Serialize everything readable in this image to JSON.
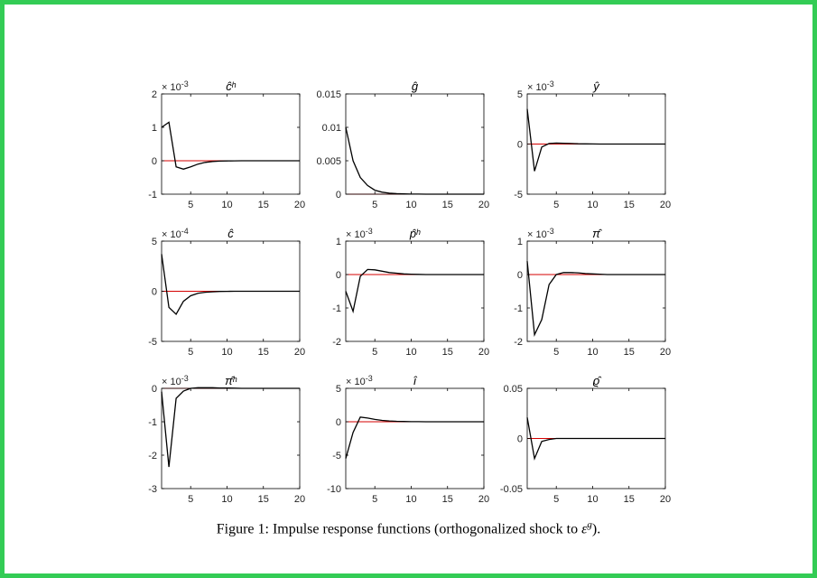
{
  "caption": {
    "label": "Figure 1:",
    "text": "Impulse response functions (orthogonalized shock to",
    "symbol": "ε",
    "superscript": "g",
    "end": ")."
  },
  "colors": {
    "frame": "#33cc55",
    "response": "#000000",
    "zero_line": "#d40000"
  },
  "chart_data": [
    {
      "type": "line",
      "title": "ĉʰ",
      "multiplier": "× 10-3",
      "xlim": [
        1,
        20
      ],
      "xticks": [
        5,
        10,
        15,
        20
      ],
      "ylim": [
        -1,
        2
      ],
      "yticks": [
        -1,
        0,
        1,
        2
      ],
      "ytick_labels": [
        "-1",
        "0",
        "1",
        "2"
      ],
      "x": [
        1,
        2,
        3,
        4,
        5,
        6,
        7,
        8,
        9,
        10,
        11,
        12,
        13,
        14,
        15,
        16,
        17,
        18,
        19,
        20
      ],
      "values": [
        1.0,
        1.15,
        -0.18,
        -0.25,
        -0.18,
        -0.1,
        -0.05,
        -0.025,
        -0.012,
        -0.006,
        -0.003,
        0,
        0,
        0,
        0,
        0,
        0,
        0,
        0,
        0
      ]
    },
    {
      "type": "line",
      "title": "ĝ",
      "multiplier": "",
      "xlim": [
        1,
        20
      ],
      "xticks": [
        5,
        10,
        15,
        20
      ],
      "ylim": [
        0,
        0.015
      ],
      "yticks": [
        0,
        0.005,
        0.01,
        0.015
      ],
      "ytick_labels": [
        "0",
        "0.005",
        "0.01",
        "0.015"
      ],
      "x": [
        1,
        2,
        3,
        4,
        5,
        6,
        7,
        8,
        9,
        10,
        11,
        12,
        13,
        14,
        15,
        16,
        17,
        18,
        19,
        20
      ],
      "values": [
        0.01,
        0.005,
        0.0025,
        0.0013,
        0.0006,
        0.0003,
        0.00015,
        8e-05,
        4e-05,
        2e-05,
        1e-05,
        0,
        0,
        0,
        0,
        0,
        0,
        0,
        0,
        0
      ]
    },
    {
      "type": "line",
      "title": "ŷ",
      "multiplier": "× 10-3",
      "xlim": [
        1,
        20
      ],
      "xticks": [
        5,
        10,
        15,
        20
      ],
      "ylim": [
        -5,
        5
      ],
      "yticks": [
        -5,
        0,
        5
      ],
      "ytick_labels": [
        "-5",
        "0",
        "5"
      ],
      "x": [
        1,
        2,
        3,
        4,
        5,
        6,
        7,
        8,
        9,
        10,
        11,
        12,
        13,
        14,
        15,
        16,
        17,
        18,
        19,
        20
      ],
      "values": [
        3.5,
        -2.7,
        -0.3,
        0.05,
        0.1,
        0.08,
        0.05,
        0.03,
        0.02,
        0.01,
        0,
        0,
        0,
        0,
        0,
        0,
        0,
        0,
        0,
        0
      ]
    },
    {
      "type": "line",
      "title": "ĉ",
      "multiplier": "× 10-4",
      "xlim": [
        1,
        20
      ],
      "xticks": [
        5,
        10,
        15,
        20
      ],
      "ylim": [
        -5,
        5
      ],
      "yticks": [
        -5,
        0,
        5
      ],
      "ytick_labels": [
        "-5",
        "0",
        "5"
      ],
      "x": [
        1,
        2,
        3,
        4,
        5,
        6,
        7,
        8,
        9,
        10,
        11,
        12,
        13,
        14,
        15,
        16,
        17,
        18,
        19,
        20
      ],
      "values": [
        3.7,
        -1.6,
        -2.3,
        -1.0,
        -0.45,
        -0.2,
        -0.1,
        -0.05,
        -0.02,
        -0.01,
        0,
        0,
        0,
        0,
        0,
        0,
        0,
        0,
        0,
        0
      ]
    },
    {
      "type": "line",
      "title": "p̂ʰ",
      "multiplier": "× 10-3",
      "xlim": [
        1,
        20
      ],
      "xticks": [
        5,
        10,
        15,
        20
      ],
      "ylim": [
        -2,
        1
      ],
      "yticks": [
        -2,
        -1,
        0,
        1
      ],
      "ytick_labels": [
        "-2",
        "-1",
        "0",
        "1"
      ],
      "x": [
        1,
        2,
        3,
        4,
        5,
        6,
        7,
        8,
        9,
        10,
        11,
        12,
        13,
        14,
        15,
        16,
        17,
        18,
        19,
        20
      ],
      "values": [
        -0.5,
        -1.1,
        -0.05,
        0.15,
        0.14,
        0.1,
        0.06,
        0.04,
        0.02,
        0.01,
        0.005,
        0,
        0,
        0,
        0,
        0,
        0,
        0,
        0,
        0
      ]
    },
    {
      "type": "line",
      "title": "π̂",
      "multiplier": "× 10-3",
      "xlim": [
        1,
        20
      ],
      "xticks": [
        5,
        10,
        15,
        20
      ],
      "ylim": [
        -2,
        1
      ],
      "yticks": [
        -2,
        -1,
        0,
        1
      ],
      "ytick_labels": [
        "-2",
        "-1",
        "0",
        "1"
      ],
      "x": [
        1,
        2,
        3,
        4,
        5,
        6,
        7,
        8,
        9,
        10,
        11,
        12,
        13,
        14,
        15,
        16,
        17,
        18,
        19,
        20
      ],
      "values": [
        0.4,
        -1.8,
        -1.35,
        -0.3,
        0.0,
        0.06,
        0.06,
        0.05,
        0.03,
        0.02,
        0.01,
        0,
        0,
        0,
        0,
        0,
        0,
        0,
        0,
        0
      ]
    },
    {
      "type": "line",
      "title": "π̂ʰ",
      "multiplier": "× 10-3",
      "xlim": [
        1,
        20
      ],
      "xticks": [
        5,
        10,
        15,
        20
      ],
      "ylim": [
        -3,
        0
      ],
      "yticks": [
        -3,
        -2,
        -1,
        0
      ],
      "ytick_labels": [
        "-3",
        "-2",
        "-1",
        "0"
      ],
      "x": [
        1,
        2,
        3,
        4,
        5,
        6,
        7,
        8,
        9,
        10,
        11,
        12,
        13,
        14,
        15,
        16,
        17,
        18,
        19,
        20
      ],
      "values": [
        -0.1,
        -2.35,
        -0.3,
        -0.08,
        0.0,
        0.02,
        0.02,
        0.02,
        0.01,
        0.01,
        0.005,
        0,
        0,
        0,
        0,
        0,
        0,
        0,
        0,
        0
      ]
    },
    {
      "type": "line",
      "title": "î",
      "multiplier": "× 10-3",
      "xlim": [
        1,
        20
      ],
      "xticks": [
        5,
        10,
        15,
        20
      ],
      "ylim": [
        -10,
        5
      ],
      "yticks": [
        -10,
        -5,
        0,
        5
      ],
      "ytick_labels": [
        "-10",
        "-5",
        "0",
        "5"
      ],
      "x": [
        1,
        2,
        3,
        4,
        5,
        6,
        7,
        8,
        9,
        10,
        11,
        12,
        13,
        14,
        15,
        16,
        17,
        18,
        19,
        20
      ],
      "values": [
        -5.5,
        -1.6,
        0.7,
        0.55,
        0.35,
        0.2,
        0.12,
        0.07,
        0.04,
        0.02,
        0.01,
        0,
        0,
        0,
        0,
        0,
        0,
        0,
        0,
        0
      ]
    },
    {
      "type": "line",
      "title": "ϱ̂",
      "multiplier": "",
      "xlim": [
        1,
        20
      ],
      "xticks": [
        5,
        10,
        15,
        20
      ],
      "ylim": [
        -0.05,
        0.05
      ],
      "yticks": [
        -0.05,
        0,
        0.05
      ],
      "ytick_labels": [
        "-0.05",
        "0",
        "0.05"
      ],
      "x": [
        1,
        2,
        3,
        4,
        5,
        6,
        7,
        8,
        9,
        10,
        11,
        12,
        13,
        14,
        15,
        16,
        17,
        18,
        19,
        20
      ],
      "values": [
        0.021,
        -0.02,
        -0.003,
        -0.001,
        0.0,
        0.0,
        0,
        0,
        0,
        0,
        0,
        0,
        0,
        0,
        0,
        0,
        0,
        0,
        0,
        0
      ]
    }
  ]
}
